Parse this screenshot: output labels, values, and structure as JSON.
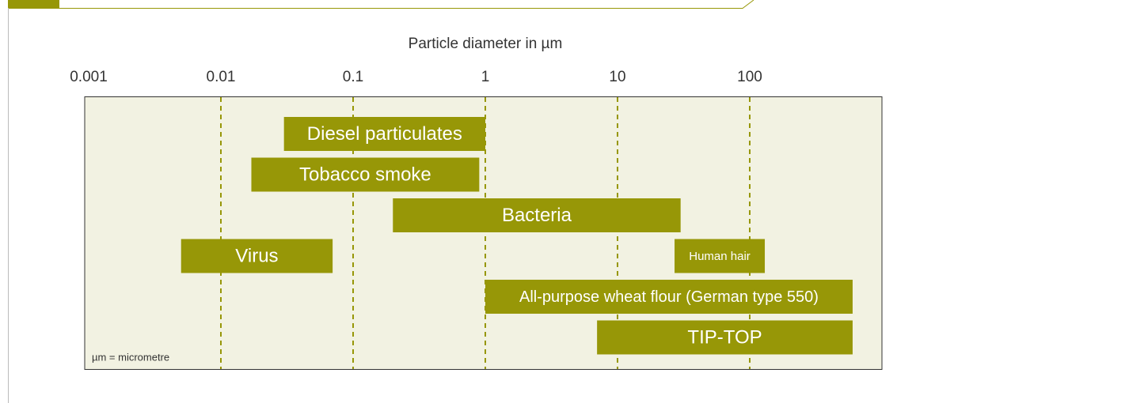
{
  "chart_data": {
    "type": "range_bar",
    "title": "Particle diameter in µm",
    "note": "µm = micrometre",
    "categories": [
      "Diesel particulates",
      "Tobacco smoke",
      "Bacteria",
      "Virus",
      "Human hair",
      "All-purpose wheat flour (German type 550)",
      "TIP-TOP"
    ],
    "start": [
      0.03,
      0.017,
      0.2,
      0.005,
      27,
      1,
      7
    ],
    "end": [
      1,
      0.9,
      30,
      0.07,
      130,
      600,
      600
    ],
    "color": "#979707",
    "xscale": "log",
    "xlim": [
      0.001,
      1000
    ],
    "xticks": [
      0.001,
      0.01,
      0.1,
      1,
      10,
      100
    ],
    "grid": true
  }
}
